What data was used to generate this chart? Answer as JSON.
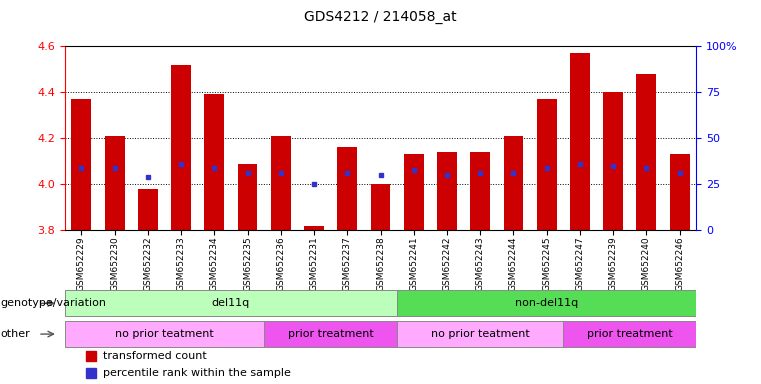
{
  "title": "GDS4212 / 214058_at",
  "samples": [
    "GSM652229",
    "GSM652230",
    "GSM652232",
    "GSM652233",
    "GSM652234",
    "GSM652235",
    "GSM652236",
    "GSM652231",
    "GSM652237",
    "GSM652238",
    "GSM652241",
    "GSM652242",
    "GSM652243",
    "GSM652244",
    "GSM652245",
    "GSM652247",
    "GSM652239",
    "GSM652240",
    "GSM652246"
  ],
  "bar_tops": [
    4.37,
    4.21,
    3.98,
    4.52,
    4.39,
    4.09,
    4.21,
    3.82,
    4.16,
    4.0,
    4.13,
    4.14,
    4.14,
    4.21,
    4.37,
    4.57,
    4.4,
    4.48,
    4.13
  ],
  "blue_dots": [
    4.07,
    4.07,
    4.03,
    4.09,
    4.07,
    4.05,
    4.05,
    4.0,
    4.05,
    4.04,
    4.06,
    4.04,
    4.05,
    4.05,
    4.07,
    4.09,
    4.08,
    4.07,
    4.05
  ],
  "bar_base": 3.8,
  "ylim": [
    3.8,
    4.6
  ],
  "yticks": [
    3.8,
    4.0,
    4.2,
    4.4,
    4.6
  ],
  "right_yticks": [
    0,
    25,
    50,
    75,
    100
  ],
  "bar_color": "#cc0000",
  "blue_color": "#3333cc",
  "genotype_groups": [
    {
      "label": "del11q",
      "start": 0,
      "end": 10,
      "color": "#bbffbb"
    },
    {
      "label": "non-del11q",
      "start": 10,
      "end": 19,
      "color": "#55dd55"
    }
  ],
  "other_groups": [
    {
      "label": "no prior teatment",
      "start": 0,
      "end": 6,
      "color": "#ffaaff"
    },
    {
      "label": "prior treatment",
      "start": 6,
      "end": 10,
      "color": "#ee55ee"
    },
    {
      "label": "no prior teatment",
      "start": 10,
      "end": 15,
      "color": "#ffaaff"
    },
    {
      "label": "prior treatment",
      "start": 15,
      "end": 19,
      "color": "#ee55ee"
    }
  ],
  "legend_items": [
    {
      "label": "transformed count",
      "color": "#cc0000"
    },
    {
      "label": "percentile rank within the sample",
      "color": "#3333cc"
    }
  ],
  "bar_width": 0.6,
  "background_color": "#ffffff",
  "grid_color": "#000000",
  "tick_label_fontsize": 6.5,
  "annotation_fontsize": 8,
  "title_fontsize": 10,
  "legend_fontsize": 8,
  "legend_marker_size": 7
}
